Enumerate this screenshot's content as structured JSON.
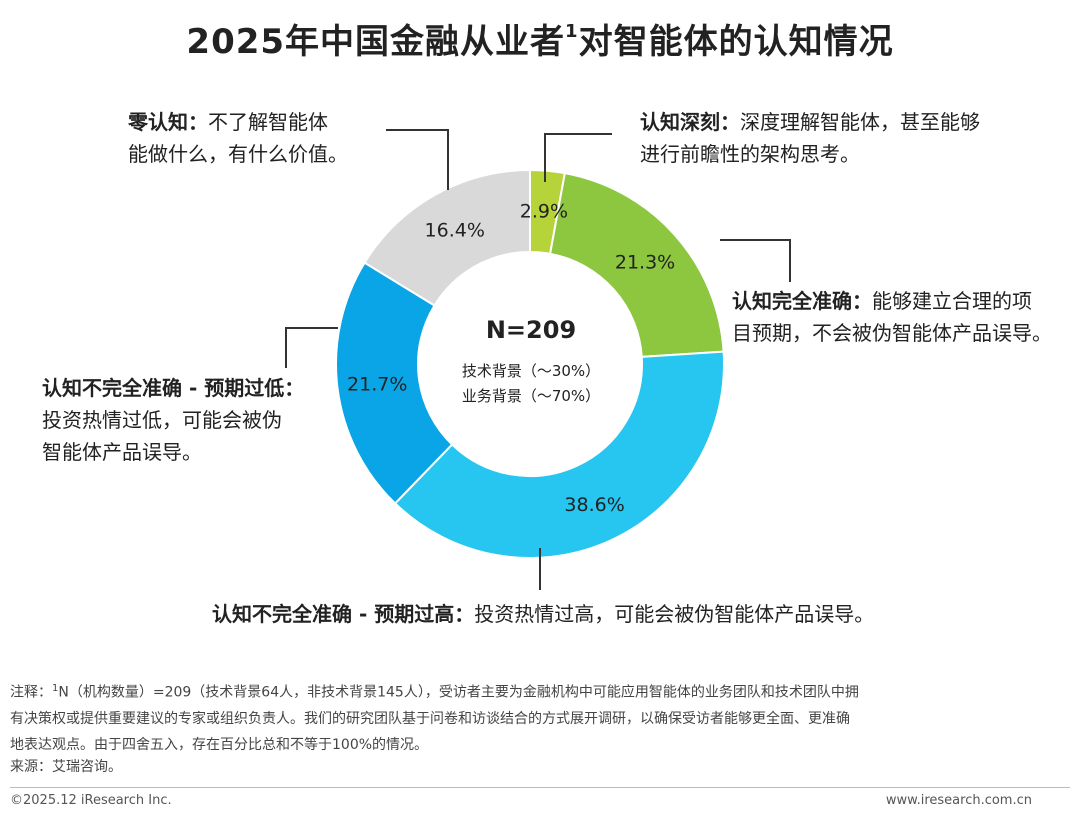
{
  "title": {
    "main": "2025年中国金融从业者",
    "sup": "1",
    "tail": "对智能体的认知情况"
  },
  "center": {
    "n_label": "N=209",
    "line1": "技术背景（～30%）",
    "line2": "业务背景（～70%）"
  },
  "callouts": {
    "deep": {
      "head": "认知深刻：",
      "text1": "深度理解智能体，甚至能够",
      "text2": "进行前瞻性的架构思考。"
    },
    "full": {
      "head": "认知完全准确：",
      "text1": "能够建立合理的项",
      "text2": "目预期，不会被伪智能体产品误导。"
    },
    "high": {
      "head": "认知不完全准确 - 预期过高：",
      "text1": "投资热情过高，可能会被伪智能体产品误导。"
    },
    "low": {
      "head": "认知不完全准确 - 预期过低：",
      "text1": "投资热情过低，可能会被伪",
      "text2": "智能体产品误导。"
    },
    "zero": {
      "head": "零认知：",
      "text1": "不了解智能体",
      "text2": "能做什么，有什么价值。"
    }
  },
  "notes": {
    "prefix": "注释：",
    "sup": "1",
    "line1": "N（机构数量）=209（技术背景64人，非技术背景145人），受访者主要为金融机构中可能应用智能体的业务团队和技术团队中拥",
    "line2": "有决策权或提供重要建议的专家或组织负责人。我们的研究团队基于问卷和访谈结合的方式展开调研，以确保受访者能够更全面、更准确",
    "line3": "地表达观点。由于四舍五入，存在百分比总和不等于100%的情况。",
    "source": "来源：艾瑞咨询。"
  },
  "footer": {
    "left": "©2025.12 iResearch Inc.",
    "right": "www.iresearch.com.cn"
  },
  "chart_data": {
    "type": "pie",
    "variant": "donut",
    "title": "2025年中国金融从业者对智能体的认知情况",
    "center_label": "N=209",
    "slices": [
      {
        "name": "认知深刻",
        "value": 2.9,
        "label": "2.9%",
        "color": "#b6d43a"
      },
      {
        "name": "认知完全准确",
        "value": 21.3,
        "label": "21.3%",
        "color": "#8dc63f"
      },
      {
        "name": "认知不完全准确 - 预期过高",
        "value": 38.6,
        "label": "38.6%",
        "color": "#26c6f0"
      },
      {
        "name": "认知不完全准确 - 预期过低",
        "value": 21.7,
        "label": "21.7%",
        "color": "#0aa5e6"
      },
      {
        "name": "零认知",
        "value": 16.4,
        "label": "16.4%",
        "color": "#d9d9d9"
      }
    ]
  }
}
